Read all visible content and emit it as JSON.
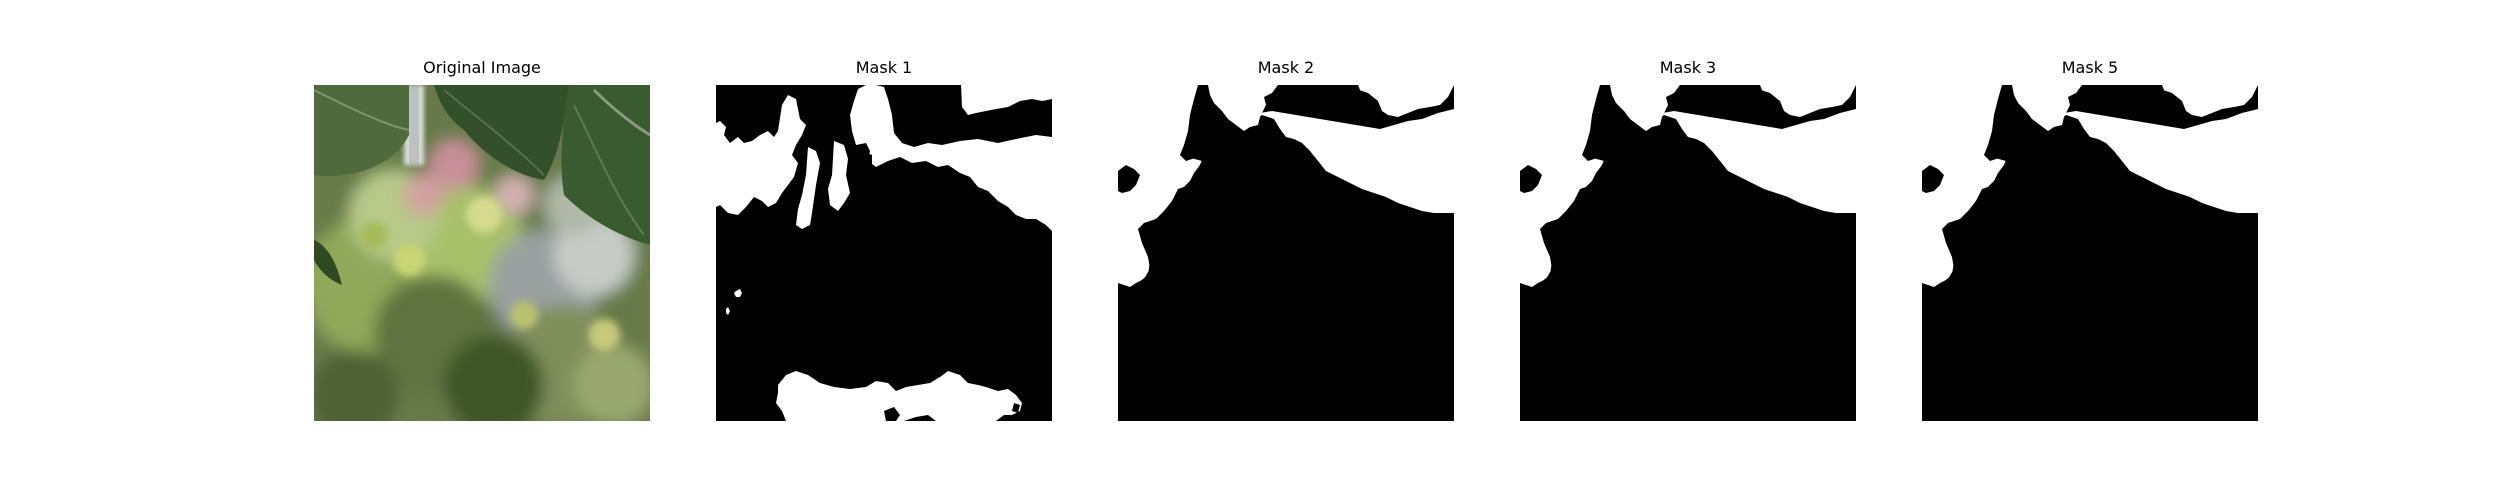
{
  "panels": [
    {
      "title": "Original Image",
      "kind": "photo"
    },
    {
      "title": "Mask 1",
      "kind": "mask"
    },
    {
      "title": "Mask 2",
      "kind": "mask"
    },
    {
      "title": "Mask 3",
      "kind": "mask"
    },
    {
      "title": "Mask 5",
      "kind": "mask"
    }
  ],
  "colors": {
    "background": "#ffffff",
    "mask_foreground": "#ffffff",
    "mask_background": "#000000"
  }
}
